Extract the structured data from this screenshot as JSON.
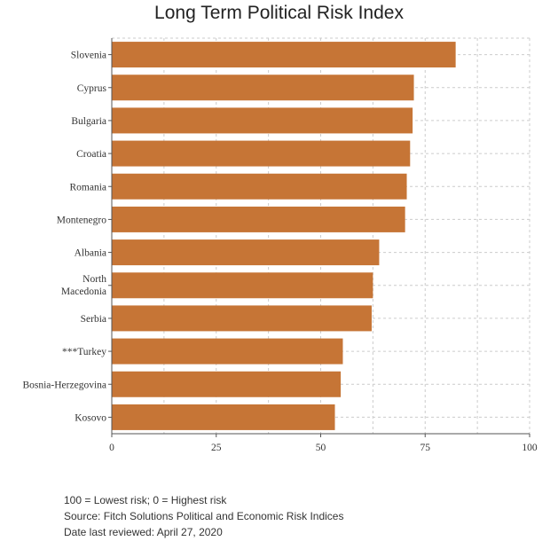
{
  "chart_data": {
    "type": "bar",
    "orientation": "horizontal",
    "title": "Long Term Political Risk Index",
    "xlabel": "",
    "ylabel": "",
    "categories": [
      "Slovenia",
      "Cyprus",
      "Bulgaria",
      "Croatia",
      "Romania",
      "Montenegro",
      "Albania",
      "North Macedonia",
      "Serbia",
      "***Turkey",
      "Bosnia-Herzegovina",
      "Kosovo"
    ],
    "values": [
      82.3,
      72.3,
      72.0,
      71.4,
      70.6,
      70.2,
      64.0,
      62.5,
      62.2,
      55.3,
      54.8,
      53.4
    ],
    "xlim": [
      0,
      100
    ],
    "xticks": [
      0,
      25,
      50,
      75,
      100
    ],
    "grid": true,
    "bar_color": "#C67536"
  },
  "footer": {
    "line1": "100 = Lowest risk; 0 = Highest risk",
    "line2": "Source: Fitch Solutions Political and Economic Risk Indices",
    "line3": "Date last reviewed: April 27, 2020"
  }
}
